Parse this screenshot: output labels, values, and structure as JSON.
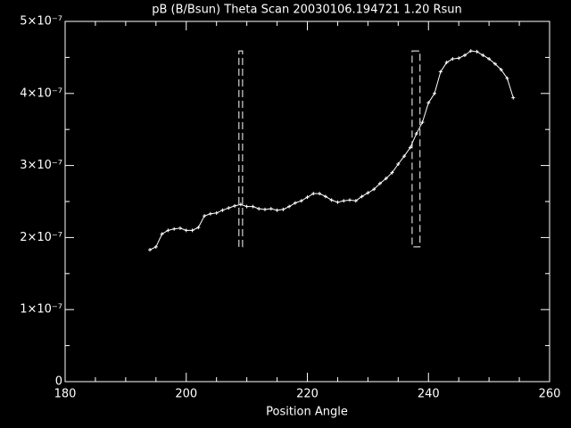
{
  "chart_data": {
    "type": "line",
    "title": "pB (B/Bsun) Theta Scan 20030106.194721 1.20 Rsun",
    "x_label": "Position Angle",
    "x": [
      194,
      195,
      196,
      197,
      198,
      199,
      200,
      201,
      202,
      203,
      204,
      205,
      206,
      207,
      208,
      209,
      210,
      211,
      212,
      213,
      214,
      215,
      216,
      217,
      218,
      219,
      220,
      221,
      222,
      223,
      224,
      225,
      226,
      227,
      228,
      229,
      230,
      231,
      232,
      233,
      234,
      235,
      236,
      237,
      238,
      239,
      240,
      241,
      242,
      243,
      244,
      245,
      246,
      247,
      248,
      249,
      250,
      251,
      252,
      253,
      254
    ],
    "values": [
      1.83e-07,
      1.87e-07,
      2.05e-07,
      2.1e-07,
      2.12e-07,
      2.13e-07,
      2.1e-07,
      2.1e-07,
      2.14e-07,
      2.3e-07,
      2.33e-07,
      2.34e-07,
      2.38e-07,
      2.41e-07,
      2.44e-07,
      2.46e-07,
      2.43e-07,
      2.43e-07,
      2.4e-07,
      2.39e-07,
      2.4e-07,
      2.38e-07,
      2.39e-07,
      2.43e-07,
      2.48e-07,
      2.51e-07,
      2.56e-07,
      2.61e-07,
      2.61e-07,
      2.57e-07,
      2.52e-07,
      2.49e-07,
      2.51e-07,
      2.52e-07,
      2.51e-07,
      2.57e-07,
      2.62e-07,
      2.67e-07,
      2.75e-07,
      2.82e-07,
      2.9e-07,
      3.02e-07,
      3.13e-07,
      3.25e-07,
      3.44e-07,
      3.6e-07,
      3.87e-07,
      4e-07,
      4.3e-07,
      4.43e-07,
      4.48e-07,
      4.49e-07,
      4.53e-07,
      4.59e-07,
      4.58e-07,
      4.53e-07,
      4.48e-07,
      4.41e-07,
      4.33e-07,
      4.21e-07,
      3.94e-07
    ],
    "color": "#ffffff",
    "regions": [
      {
        "x0": 208.7,
        "x1": 209.3,
        "y0": 1.87e-07,
        "y1": 4.59e-07
      },
      {
        "x0": 237.3,
        "x1": 238.6,
        "y0": 1.87e-07,
        "y1": 4.59e-07
      }
    ],
    "xlim": [
      180,
      260
    ],
    "xticks": [
      180,
      200,
      220,
      240,
      260
    ],
    "x_minor": 4,
    "ylim": [
      0,
      5e-07
    ],
    "yticks": [
      0,
      {
        "value": 1e-07,
        "label": "1×10⁻⁷"
      },
      {
        "value": 2e-07,
        "label": "2×10⁻⁷"
      },
      {
        "value": 3e-07,
        "label": "3×10⁻⁷"
      },
      {
        "value": 4e-07,
        "label": "4×10⁻⁷"
      },
      {
        "value": 5e-07,
        "label": "5×10⁻⁷"
      }
    ],
    "y_minor": 2,
    "grid": false
  }
}
